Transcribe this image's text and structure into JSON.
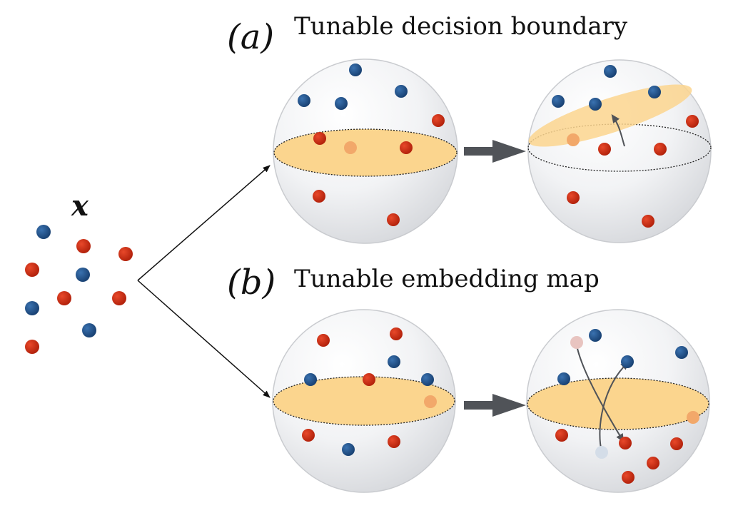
{
  "labels": {
    "a_letter": "(a)",
    "a_title": "Tunable decision boundary",
    "b_letter": "(b)",
    "b_title": "Tunable embedding map",
    "input_symbol": "x"
  },
  "colors": {
    "blue_point": "#1e528c",
    "red_point": "#cc2a10",
    "faded_orange_point": "#f2a86a",
    "faded_red_point": "#e8c4c0",
    "faded_blue_point": "#d4dde8",
    "plane_fill": "#fbd58e",
    "sphere_fill": "#eceef1",
    "arrow": "#505358"
  }
}
